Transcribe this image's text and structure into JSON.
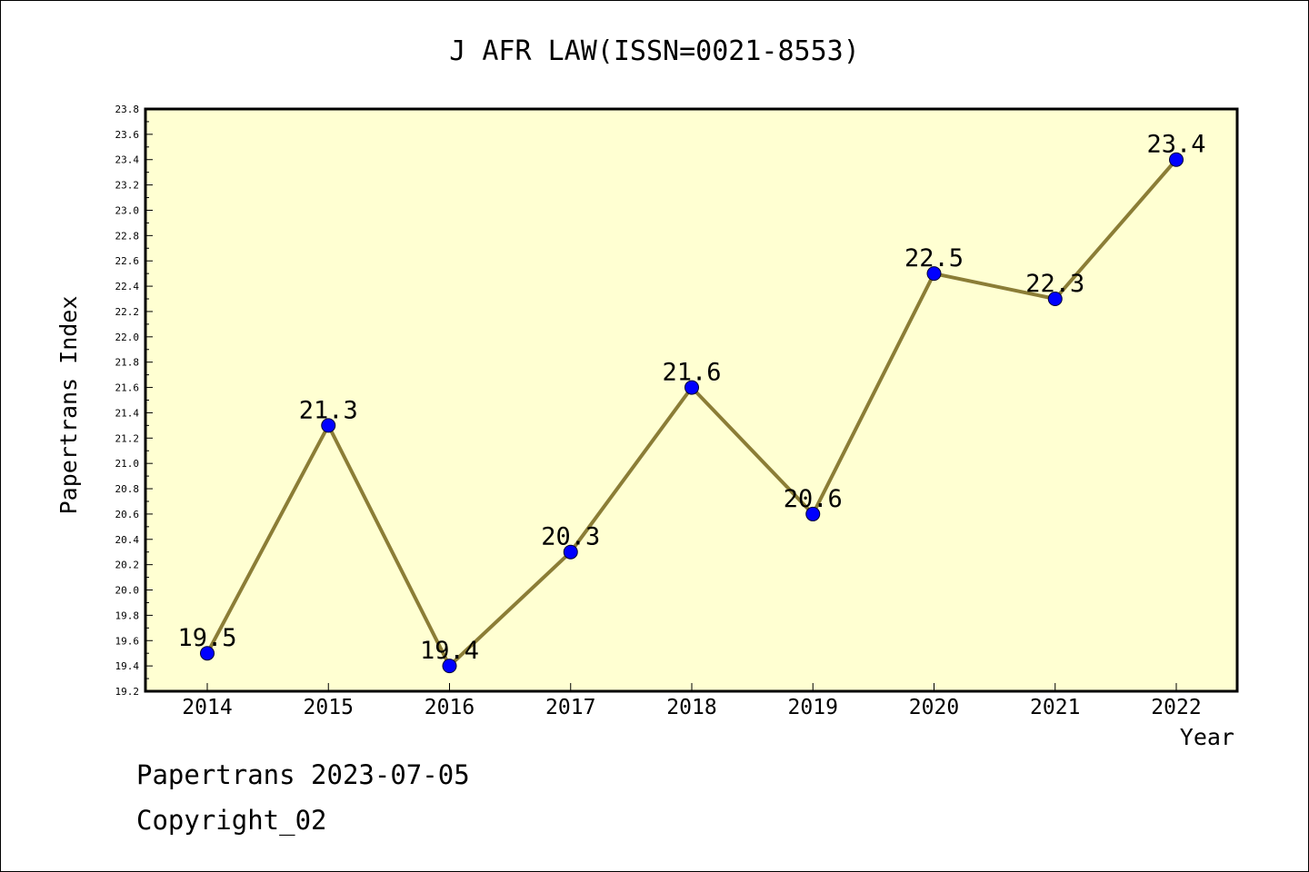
{
  "chart_data": {
    "type": "line",
    "title": "J AFR LAW(ISSN=0021-8553)",
    "xlabel": "Year",
    "ylabel": "Papertrans Index",
    "categories": [
      "2014",
      "2015",
      "2016",
      "2017",
      "2018",
      "2019",
      "2020",
      "2021",
      "2022"
    ],
    "series": [
      {
        "values": [
          19.5,
          21.3,
          19.4,
          20.3,
          21.6,
          20.6,
          22.5,
          22.3,
          23.4
        ],
        "labels": [
          "19.5",
          "21.3",
          "19.4",
          "20.3",
          "21.6",
          "20.6",
          "22.5",
          "22.3",
          "23.4"
        ]
      }
    ],
    "ylim": [
      19.2,
      23.8
    ],
    "yticks": [
      "19.2",
      "19.4",
      "19.6",
      "19.8",
      "20.0",
      "20.2",
      "20.4",
      "20.6",
      "20.8",
      "21.0",
      "21.2",
      "21.4",
      "21.6",
      "21.8",
      "22.0",
      "22.2",
      "22.4",
      "22.6",
      "22.8",
      "23.0",
      "23.2",
      "23.4",
      "23.6",
      "23.8"
    ],
    "grid": false,
    "colors": {
      "plot_background": "#ffffd2",
      "line": "#8b7d36",
      "marker": "#0000ff"
    }
  },
  "footer": {
    "line1": "Papertrans 2023-07-05",
    "line2": "Copyright_02"
  }
}
